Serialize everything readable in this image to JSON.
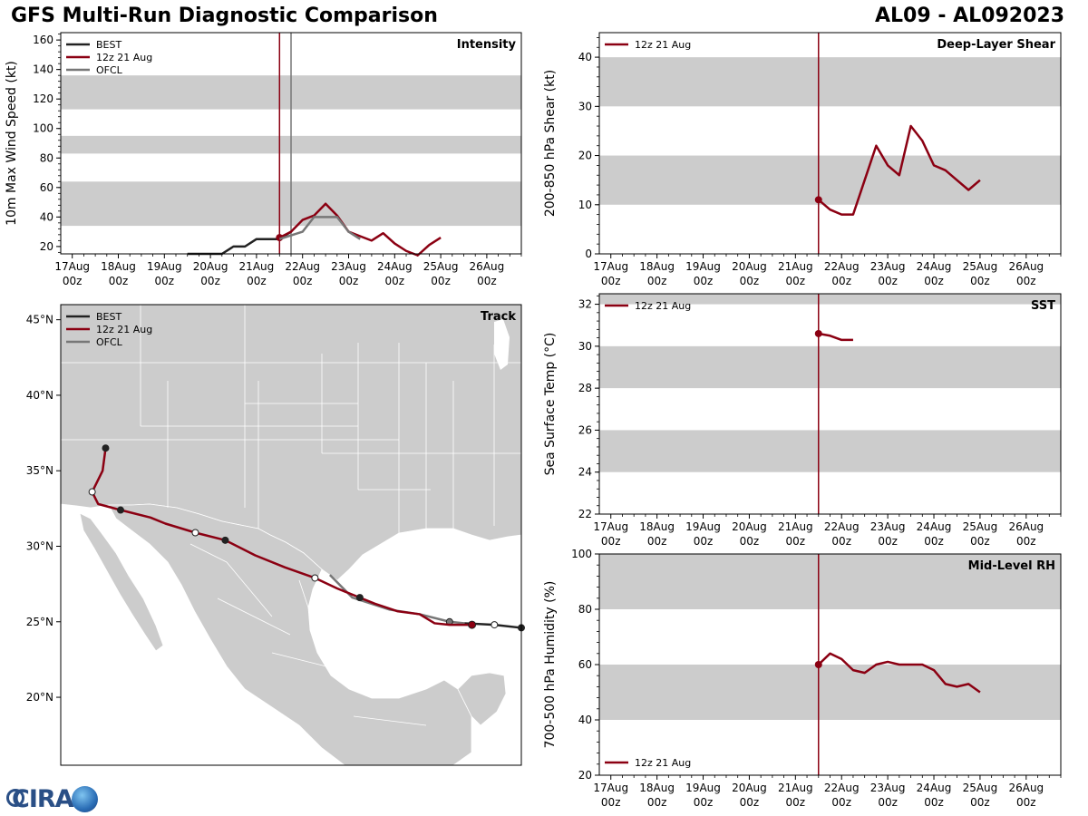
{
  "header": {
    "title": "GFS Multi-Run Diagnostic Comparison",
    "storm_id": "AL09 - AL092023"
  },
  "logo": {
    "text": "CIRA"
  },
  "colors": {
    "best": "#222222",
    "run": "#8b0012",
    "ofcl": "#777777",
    "band": "#cccccc",
    "land": "#cccccc",
    "border": "#ffffff"
  },
  "time_axis": {
    "ticks": [
      {
        "day": 0,
        "line1": "17Aug",
        "line2": "00z"
      },
      {
        "day": 1,
        "line1": "18Aug",
        "line2": "00z"
      },
      {
        "day": 2,
        "line1": "19Aug",
        "line2": "00z"
      },
      {
        "day": 3,
        "line1": "20Aug",
        "line2": "00z"
      },
      {
        "day": 4,
        "line1": "21Aug",
        "line2": "00z"
      },
      {
        "day": 5,
        "line1": "22Aug",
        "line2": "00z"
      },
      {
        "day": 6,
        "line1": "23Aug",
        "line2": "00z"
      },
      {
        "day": 7,
        "line1": "24Aug",
        "line2": "00z"
      },
      {
        "day": 8,
        "line1": "25Aug",
        "line2": "00z"
      },
      {
        "day": 9,
        "line1": "26Aug",
        "line2": "00z"
      }
    ]
  },
  "chart_data": [
    {
      "id": "intensity",
      "type": "line",
      "title": "Intensity",
      "ylabel": "10m Max Wind Speed (kt)",
      "xlim": [
        -0.25,
        9.75
      ],
      "ylim": [
        15,
        165
      ],
      "yticks": [
        20,
        40,
        60,
        80,
        100,
        120,
        140,
        160
      ],
      "bands": [
        [
          34,
          64
        ],
        [
          83,
          95
        ],
        [
          113,
          136
        ]
      ],
      "init_line": 4.5,
      "ofcl_line": 4.75,
      "legend": [
        "BEST",
        "12z 21 Aug",
        "OFCL"
      ],
      "series": [
        {
          "name": "BEST",
          "style": "best",
          "x": [
            2.5,
            3.0,
            3.25,
            3.5,
            3.75,
            4.0,
            4.25,
            4.5,
            4.75
          ],
          "y": [
            15,
            15,
            15,
            20,
            20,
            25,
            25,
            25,
            30
          ]
        },
        {
          "name": "12z 21 Aug",
          "style": "run",
          "marker_first": true,
          "x": [
            4.5,
            4.75,
            5.0,
            5.25,
            5.5,
            5.75,
            6.0,
            6.25,
            6.5,
            6.75,
            7.0,
            7.25,
            7.5,
            7.75,
            8.0
          ],
          "y": [
            26,
            30,
            38,
            41,
            49,
            41,
            30,
            27,
            24,
            29,
            22,
            17,
            14,
            21,
            26
          ]
        },
        {
          "name": "OFCL",
          "style": "ofcl",
          "x": [
            4.5,
            5.0,
            5.25,
            5.5,
            5.75,
            6.0,
            6.25
          ],
          "y": [
            25,
            30,
            40,
            40,
            40,
            30,
            25
          ]
        }
      ]
    },
    {
      "id": "shear",
      "type": "line",
      "title": "Deep-Layer Shear",
      "ylabel": "200-850 hPa Shear (kt)",
      "xlim": [
        -0.25,
        9.75
      ],
      "ylim": [
        0,
        45
      ],
      "yticks": [
        0,
        10,
        20,
        30,
        40
      ],
      "bands": [
        [
          10,
          20
        ],
        [
          30,
          40
        ]
      ],
      "init_line": 4.5,
      "legend": [
        "12z 21 Aug"
      ],
      "series": [
        {
          "name": "12z 21 Aug",
          "style": "run",
          "marker_first": true,
          "x": [
            4.5,
            4.75,
            5.0,
            5.25,
            5.5,
            5.75,
            6.0,
            6.25,
            6.5,
            6.75,
            7.0,
            7.25,
            7.5,
            7.75,
            8.0
          ],
          "y": [
            11,
            9,
            8,
            8,
            15,
            22,
            18,
            16,
            26,
            23,
            18,
            17,
            15,
            13,
            15
          ]
        }
      ]
    },
    {
      "id": "sst",
      "type": "line",
      "title": "SST",
      "ylabel": "Sea Surface Temp (°C)",
      "xlim": [
        -0.25,
        9.75
      ],
      "ylim": [
        22,
        32.5
      ],
      "yticks": [
        22,
        24,
        26,
        28,
        30,
        32
      ],
      "bands": [
        [
          24,
          26
        ],
        [
          28,
          30
        ],
        [
          32,
          33
        ]
      ],
      "init_line": 4.5,
      "legend": [
        "12z 21 Aug"
      ],
      "series": [
        {
          "name": "12z 21 Aug",
          "style": "run",
          "marker_first": true,
          "x": [
            4.5,
            4.75,
            5.0,
            5.25
          ],
          "y": [
            30.6,
            30.5,
            30.3,
            30.3
          ]
        }
      ]
    },
    {
      "id": "rh",
      "type": "line",
      "title": "Mid-Level RH",
      "ylabel": "700-500 hPa Humidity (%)",
      "xlim": [
        -0.25,
        9.75
      ],
      "ylim": [
        20,
        100
      ],
      "yticks": [
        20,
        40,
        60,
        80,
        100
      ],
      "bands": [
        [
          40,
          60
        ],
        [
          80,
          100
        ]
      ],
      "init_line": 4.5,
      "legend": [
        "12z 21 Aug"
      ],
      "legend_pos": "bottom-left",
      "series": [
        {
          "name": "12z 21 Aug",
          "style": "run",
          "marker_first": true,
          "x": [
            4.5,
            4.75,
            5.0,
            5.25,
            5.5,
            5.75,
            6.0,
            6.25,
            6.5,
            6.75,
            7.0,
            7.25,
            7.5,
            7.75,
            8.0
          ],
          "y": [
            60,
            64,
            62,
            58,
            57,
            60,
            61,
            60,
            60,
            60,
            58,
            53,
            52,
            53,
            50
          ]
        }
      ]
    },
    {
      "id": "track",
      "type": "line",
      "title": "Track",
      "xlim": [
        -120.0,
        -89.2
      ],
      "ylim": [
        15.5,
        46.0
      ],
      "lat_ticks": [
        20,
        25,
        30,
        35,
        40,
        45
      ],
      "lat_labels": [
        "20°N",
        "25°N",
        "30°N",
        "35°N",
        "40°N",
        "45°N"
      ],
      "legend": [
        "BEST",
        "12z 21 Aug",
        "OFCL"
      ],
      "series": [
        {
          "name": "BEST",
          "style": "best",
          "lon": [
            -89.2,
            -91.0,
            -93.0
          ],
          "lat": [
            24.6,
            24.8,
            24.9
          ],
          "markers": [
            {
              "i": 0,
              "fill": "dark"
            },
            {
              "i": 1,
              "fill": "white"
            }
          ]
        },
        {
          "name": "OFCL",
          "style": "ofcl",
          "lon": [
            -93.0,
            -94.0,
            -96.0,
            -98.0,
            -100.5,
            -102.0
          ],
          "lat": [
            24.9,
            25.0,
            25.5,
            25.8,
            26.6,
            28.1
          ],
          "markers": [
            {
              "i": 1,
              "fill": "gray"
            }
          ]
        },
        {
          "name": "12z 21 Aug",
          "style": "run",
          "lon": [
            -92.5,
            -94.0,
            -95.0,
            -96.0,
            -97.5,
            -99.0,
            -100.0,
            -101.5,
            -103.0,
            -105.0,
            -107.0,
            -109.0,
            -111.0,
            -113.0,
            -114.0,
            -116.0,
            -117.5,
            -117.9,
            -117.6,
            -117.2,
            -117.0
          ],
          "lat": [
            24.8,
            24.8,
            24.9,
            25.5,
            25.7,
            26.2,
            26.6,
            27.2,
            27.9,
            28.6,
            29.4,
            30.4,
            30.9,
            31.5,
            31.9,
            32.4,
            32.8,
            33.6,
            34.2,
            35.0,
            36.5
          ],
          "markers": [
            {
              "i": 0,
              "fill": "run"
            },
            {
              "i": 6,
              "fill": "dark"
            },
            {
              "i": 8,
              "fill": "white"
            },
            {
              "i": 11,
              "fill": "dark"
            },
            {
              "i": 12,
              "fill": "white"
            },
            {
              "i": 15,
              "fill": "dark"
            },
            {
              "i": 17,
              "fill": "white"
            },
            {
              "i": 20,
              "fill": "dark"
            }
          ]
        }
      ]
    }
  ]
}
